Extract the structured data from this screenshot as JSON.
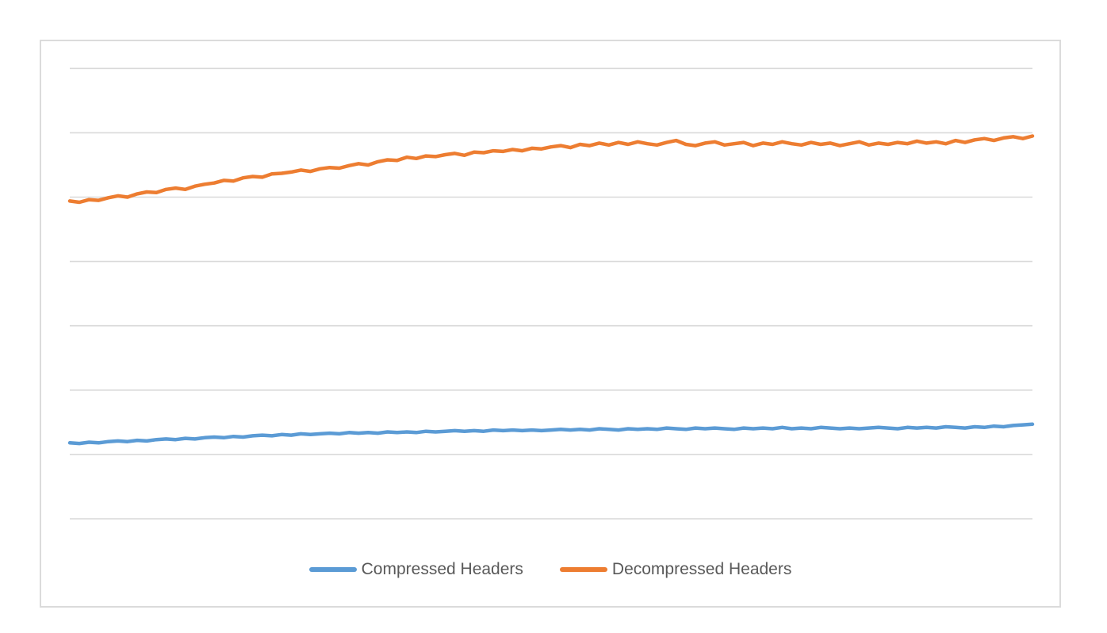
{
  "chart_data": {
    "type": "line",
    "title": "",
    "xlabel": "",
    "ylabel": "",
    "x_axis": {
      "tick_labels_visible": false,
      "axis_line_visible": false,
      "note": "points evenly spaced left-to-right; no x tick labels shown"
    },
    "y_axis": {
      "tick_labels_visible": false,
      "axis_line_visible": false,
      "gridline_count": 8,
      "units": "gridline units (bottom visible gridline = 0, top visible gridline = 7)",
      "ylim_visible_gridlines": [
        0,
        7
      ]
    },
    "grid": "horizontal",
    "legend_position": "bottom-center",
    "series": [
      {
        "name": "Compressed Headers",
        "color": "#5B9BD5",
        "values": [
          1.18,
          1.17,
          1.19,
          1.18,
          1.2,
          1.21,
          1.2,
          1.22,
          1.21,
          1.23,
          1.24,
          1.23,
          1.25,
          1.24,
          1.26,
          1.27,
          1.26,
          1.28,
          1.27,
          1.29,
          1.3,
          1.29,
          1.31,
          1.3,
          1.32,
          1.31,
          1.32,
          1.33,
          1.32,
          1.34,
          1.33,
          1.34,
          1.33,
          1.35,
          1.34,
          1.35,
          1.34,
          1.36,
          1.35,
          1.36,
          1.37,
          1.36,
          1.37,
          1.36,
          1.38,
          1.37,
          1.38,
          1.37,
          1.38,
          1.37,
          1.38,
          1.39,
          1.38,
          1.39,
          1.38,
          1.4,
          1.39,
          1.38,
          1.4,
          1.39,
          1.4,
          1.39,
          1.41,
          1.4,
          1.39,
          1.41,
          1.4,
          1.41,
          1.4,
          1.39,
          1.41,
          1.4,
          1.41,
          1.4,
          1.42,
          1.4,
          1.41,
          1.4,
          1.42,
          1.41,
          1.4,
          1.41,
          1.4,
          1.41,
          1.42,
          1.41,
          1.4,
          1.42,
          1.41,
          1.42,
          1.41,
          1.43,
          1.42,
          1.41,
          1.43,
          1.42,
          1.44,
          1.43,
          1.45,
          1.46,
          1.47
        ]
      },
      {
        "name": "Decompressed Headers",
        "color": "#ED7D31",
        "values": [
          4.94,
          4.92,
          4.96,
          4.95,
          4.99,
          5.02,
          5.0,
          5.05,
          5.08,
          5.07,
          5.12,
          5.14,
          5.12,
          5.17,
          5.2,
          5.22,
          5.26,
          5.25,
          5.3,
          5.32,
          5.31,
          5.36,
          5.37,
          5.39,
          5.42,
          5.4,
          5.44,
          5.46,
          5.45,
          5.49,
          5.52,
          5.5,
          5.55,
          5.58,
          5.57,
          5.62,
          5.6,
          5.64,
          5.63,
          5.66,
          5.68,
          5.65,
          5.7,
          5.69,
          5.72,
          5.71,
          5.74,
          5.72,
          5.76,
          5.75,
          5.78,
          5.8,
          5.77,
          5.82,
          5.8,
          5.84,
          5.81,
          5.85,
          5.82,
          5.86,
          5.83,
          5.81,
          5.85,
          5.88,
          5.82,
          5.8,
          5.84,
          5.86,
          5.81,
          5.83,
          5.85,
          5.8,
          5.84,
          5.82,
          5.86,
          5.83,
          5.81,
          5.85,
          5.82,
          5.84,
          5.8,
          5.83,
          5.86,
          5.81,
          5.84,
          5.82,
          5.85,
          5.83,
          5.87,
          5.84,
          5.86,
          5.83,
          5.88,
          5.85,
          5.89,
          5.91,
          5.88,
          5.92,
          5.94,
          5.91,
          5.95
        ]
      }
    ],
    "legend_labels": [
      "Compressed Headers",
      "Decompressed Headers"
    ]
  },
  "colors": {
    "series_blue": "#5B9BD5",
    "series_orange": "#ED7D31",
    "gridline": "#D9D9D9",
    "chart_border": "#DBDBDB",
    "legend_text": "#595959",
    "background": "#FFFFFF"
  }
}
